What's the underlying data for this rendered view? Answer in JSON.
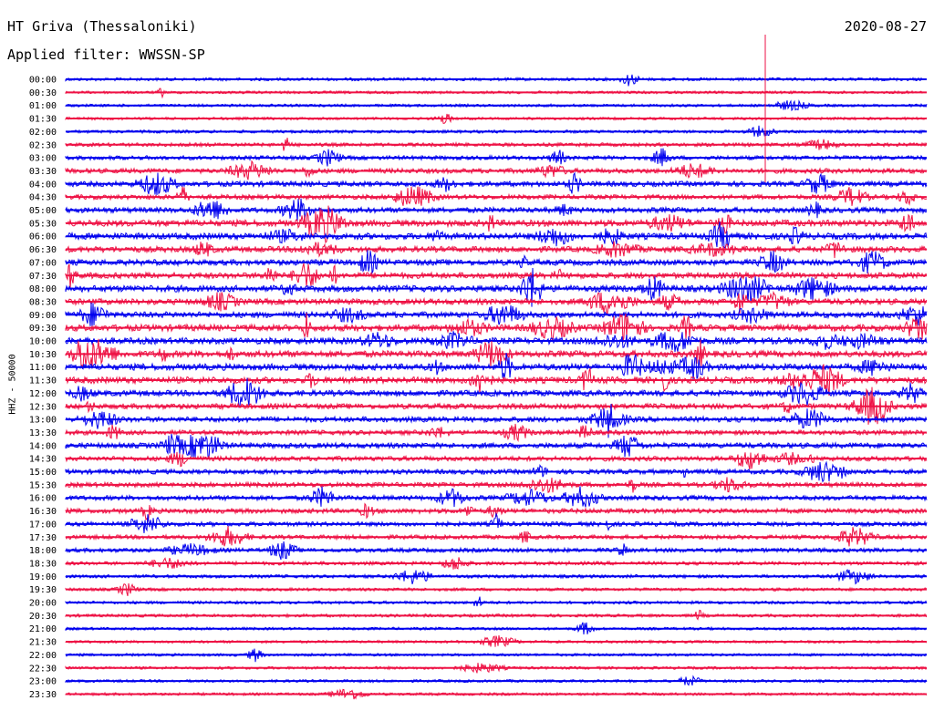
{
  "header": {
    "station": "HT Griva (Thessaloniki)",
    "date": "2020-08-27",
    "filter_label": "Applied filter: WWSSN-SP"
  },
  "axis": {
    "channel_label": "HHZ - 50000"
  },
  "colors": {
    "blue": "#0000ee",
    "red": "#ee1144"
  },
  "chart_data": {
    "type": "line",
    "title": "HT Griva (Thessaloniki)",
    "subtitle": "Applied filter: WWSSN-SP",
    "ylabel": "HHZ - 50000",
    "xlabel": "",
    "rows": [
      "00:00",
      "00:30",
      "01:00",
      "01:30",
      "02:00",
      "02:30",
      "03:00",
      "03:30",
      "04:00",
      "04:30",
      "05:00",
      "05:30",
      "06:00",
      "06:30",
      "07:00",
      "07:30",
      "08:00",
      "08:30",
      "09:00",
      "09:30",
      "10:00",
      "10:30",
      "11:00",
      "11:30",
      "12:00",
      "12:30",
      "13:00",
      "13:30",
      "14:00",
      "14:30",
      "15:00",
      "15:30",
      "16:00",
      "16:30",
      "17:00",
      "17:30",
      "18:00",
      "18:30",
      "19:00",
      "19:30",
      "20:00",
      "20:30",
      "21:00",
      "21:30",
      "22:00",
      "22:30",
      "23:00",
      "23:30"
    ],
    "row_noise_level": [
      0.2,
      0.15,
      0.15,
      0.15,
      0.2,
      0.3,
      0.4,
      0.5,
      0.6,
      0.5,
      0.6,
      0.8,
      0.8,
      0.7,
      0.7,
      0.7,
      0.8,
      0.7,
      0.7,
      0.8,
      0.8,
      0.8,
      0.8,
      0.8,
      0.7,
      0.6,
      0.6,
      0.5,
      0.6,
      0.5,
      0.5,
      0.5,
      0.5,
      0.5,
      0.45,
      0.4,
      0.4,
      0.3,
      0.25,
      0.2,
      0.2,
      0.2,
      0.15,
      0.15,
      0.15,
      0.15,
      0.15,
      0.15
    ],
    "series_colors": [
      "blue",
      "red"
    ]
  }
}
